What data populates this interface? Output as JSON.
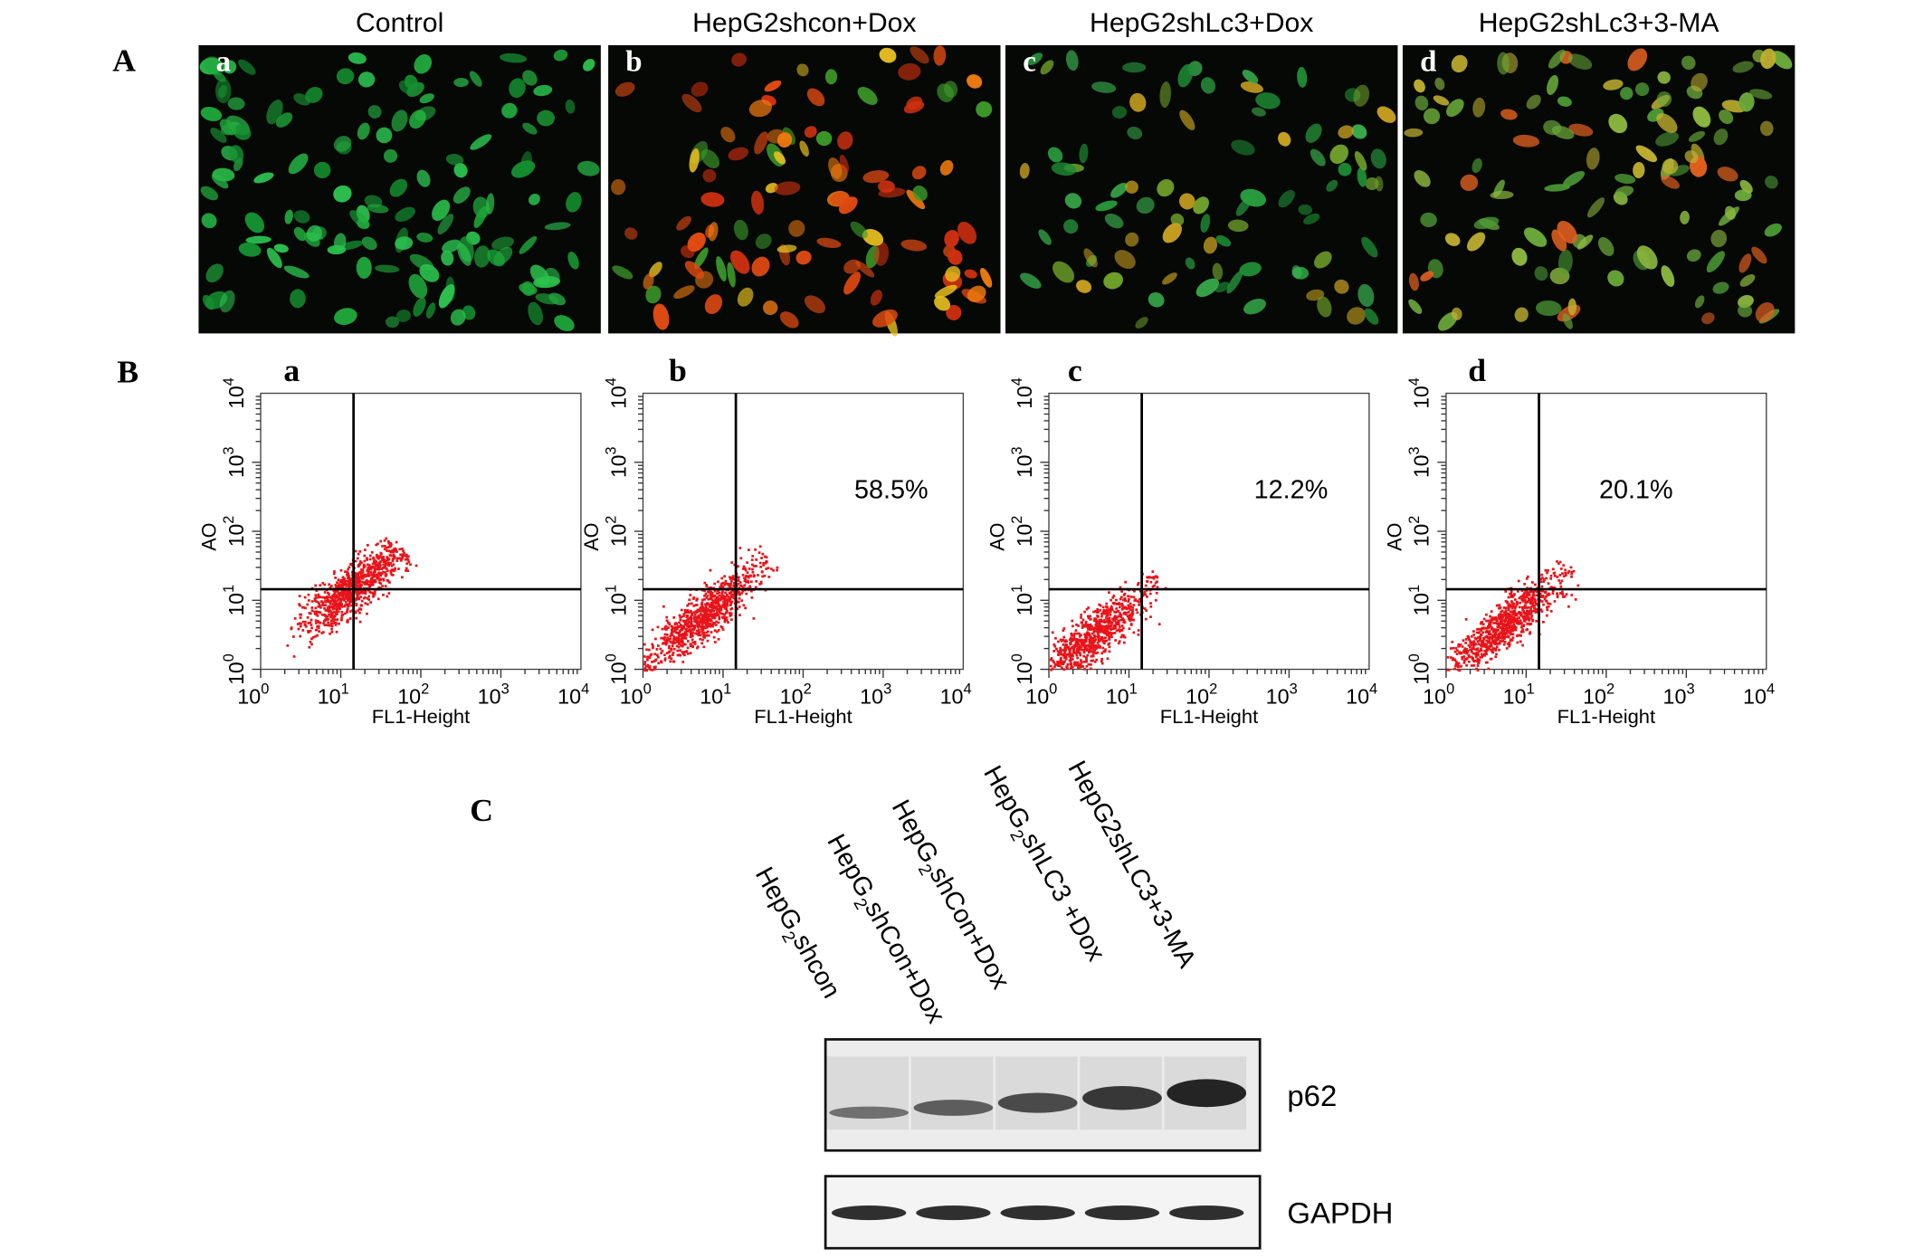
{
  "panel_a": {
    "label": "A",
    "images": [
      {
        "title": "Control",
        "letter": "a"
      },
      {
        "title": "HepG2shcon+Dox",
        "letter": "b"
      },
      {
        "title": "HepG2shLc3+Dox",
        "letter": "c"
      },
      {
        "title": "HepG2shLc3+3-MA",
        "letter": "d"
      }
    ]
  },
  "panel_b": {
    "label": "B",
    "y_label": "AO",
    "x_label": "FL1-Height",
    "tick_base": "10",
    "tick_exponents": [
      "0",
      "1",
      "2",
      "3",
      "4"
    ],
    "plots": [
      {
        "letter": "a"
      },
      {
        "letter": "b",
        "percent": "58.5%"
      },
      {
        "letter": "c",
        "percent": "12.2%"
      },
      {
        "letter": "d",
        "percent": "20.1%"
      }
    ]
  },
  "panel_c": {
    "label": "C",
    "lanes": [
      [
        {
          "text": "HepG"
        },
        {
          "text": "2",
          "sub": true
        },
        {
          "text": "shcon"
        }
      ],
      [
        {
          "text": "HepG"
        },
        {
          "text": "2",
          "sub": true
        },
        {
          "text": "shCon+Dox"
        }
      ],
      [
        {
          "text": "HepG"
        },
        {
          "text": "2",
          "sub": true
        },
        {
          "text": "shCon+Dox"
        }
      ],
      [
        {
          "text": "HepG"
        },
        {
          "text": "2",
          "sub": true
        },
        {
          "text": "shLC3 +Dox"
        }
      ],
      [
        {
          "text": "HepG2shLC3+3-MA"
        }
      ]
    ],
    "blots": [
      {
        "label": "p62"
      },
      {
        "label": "GAPDH"
      }
    ]
  }
}
